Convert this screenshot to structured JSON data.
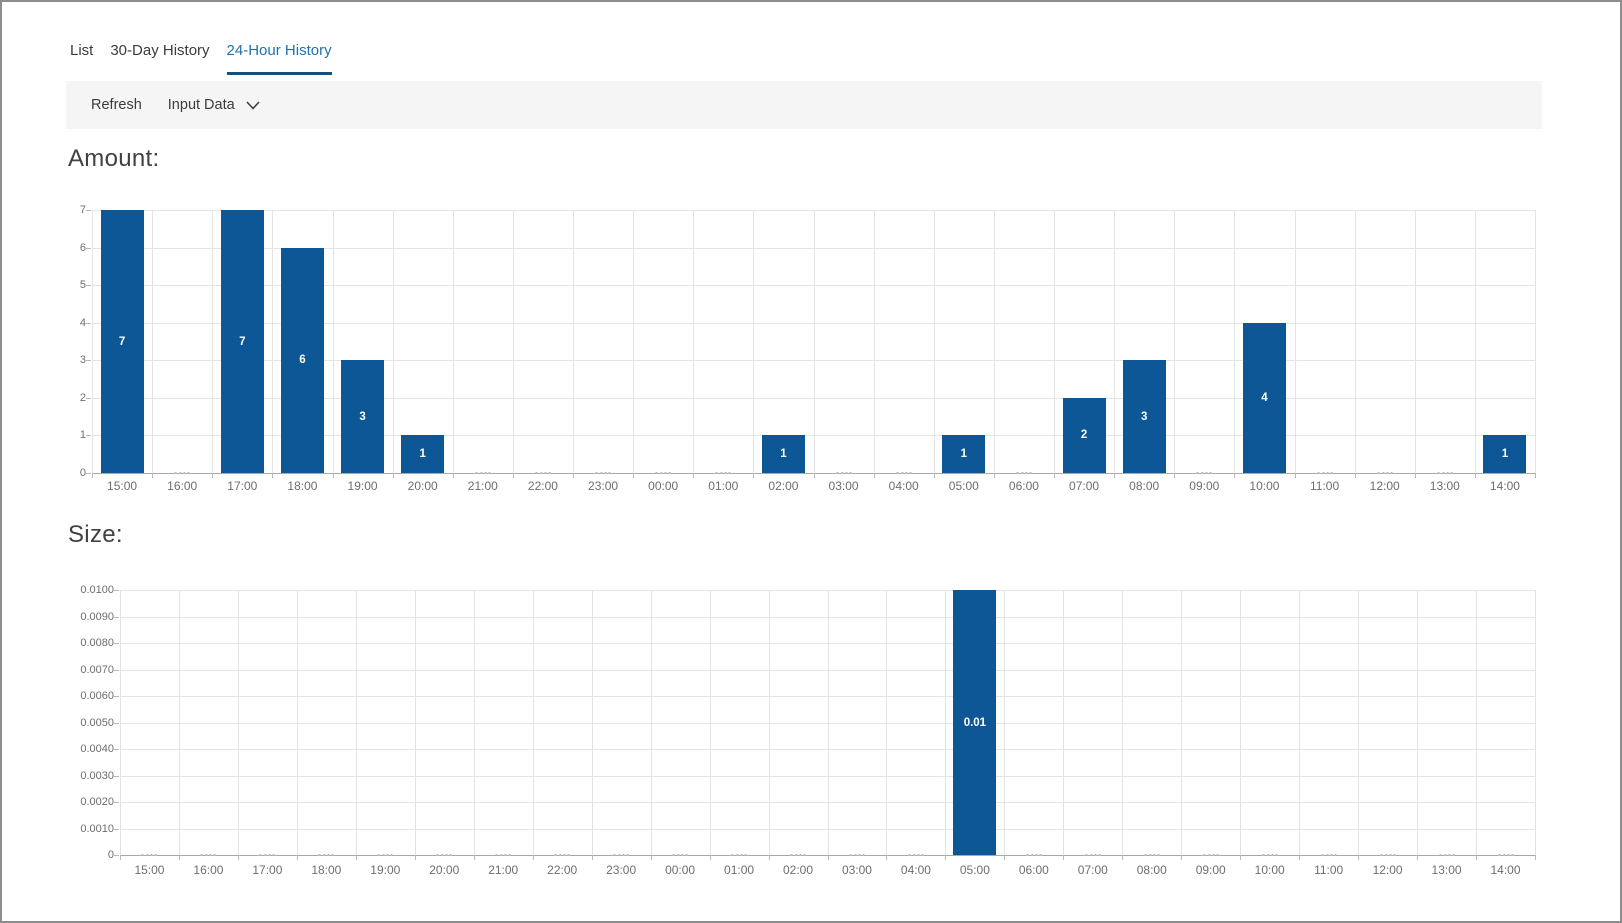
{
  "tabs": {
    "items": [
      {
        "label": "List",
        "active": false
      },
      {
        "label": "30-Day History",
        "active": false
      },
      {
        "label": "24-Hour History",
        "active": true
      }
    ]
  },
  "toolbar": {
    "refresh": "Refresh",
    "input_data": "Input Data",
    "input_data_icon": "chevron-down-icon"
  },
  "colors": {
    "bar": "#0d5796",
    "tab_active": "#2171ac",
    "tab_underline": "#15517f",
    "toolbar_bg": "#f5f5f5",
    "grid": "#e4e4e4",
    "axis": "#a9a9a9",
    "tick_label": "#6e6e6e",
    "bar_label": "#ffffff"
  },
  "chart_data": [
    {
      "id": "amount",
      "type": "bar",
      "title": "Amount:",
      "categories": [
        "15:00",
        "16:00",
        "17:00",
        "18:00",
        "19:00",
        "20:00",
        "21:00",
        "22:00",
        "23:00",
        "00:00",
        "01:00",
        "02:00",
        "03:00",
        "04:00",
        "05:00",
        "06:00",
        "07:00",
        "08:00",
        "09:00",
        "10:00",
        "11:00",
        "12:00",
        "13:00",
        "14:00"
      ],
      "values": [
        7,
        0,
        7,
        6,
        3,
        1,
        0,
        0,
        0,
        0,
        0,
        1,
        0,
        0,
        1,
        0,
        2,
        3,
        0,
        4,
        0,
        0,
        0,
        1
      ],
      "bar_labels": [
        "7",
        "",
        "7",
        "6",
        "3",
        "1",
        "",
        "",
        "",
        "",
        "",
        "1",
        "",
        "",
        "1",
        "",
        "2",
        "3",
        "",
        "4",
        "",
        "",
        "",
        "1"
      ],
      "ylim": [
        0,
        7
      ],
      "yticks": [
        "0",
        "1",
        "2",
        "3",
        "4",
        "5",
        "6",
        "7"
      ],
      "xlabel": "",
      "ylabel": "",
      "grid": true,
      "legend": false
    },
    {
      "id": "size",
      "type": "bar",
      "title": "Size:",
      "categories": [
        "15:00",
        "16:00",
        "17:00",
        "18:00",
        "19:00",
        "20:00",
        "21:00",
        "22:00",
        "23:00",
        "00:00",
        "01:00",
        "02:00",
        "03:00",
        "04:00",
        "05:00",
        "06:00",
        "07:00",
        "08:00",
        "09:00",
        "10:00",
        "11:00",
        "12:00",
        "13:00",
        "14:00"
      ],
      "values": [
        0,
        0,
        0,
        0,
        0,
        0,
        0,
        0,
        0,
        0,
        0,
        0,
        0,
        0,
        0.01,
        0,
        0,
        0,
        0,
        0,
        0,
        0,
        0,
        0
      ],
      "bar_labels": [
        "",
        "",
        "",
        "",
        "",
        "",
        "",
        "",
        "",
        "",
        "",
        "",
        "",
        "",
        "0.01",
        "",
        "",
        "",
        "",
        "",
        "",
        "",
        "",
        ""
      ],
      "ylim": [
        0,
        0.01
      ],
      "yticks": [
        "0",
        "0.0010",
        "0.0020",
        "0.0030",
        "0.0040",
        "0.0050",
        "0.0060",
        "0.0070",
        "0.0080",
        "0.0090",
        "0.0100"
      ],
      "xlabel": "",
      "ylabel": "",
      "grid": true,
      "legend": false
    }
  ]
}
